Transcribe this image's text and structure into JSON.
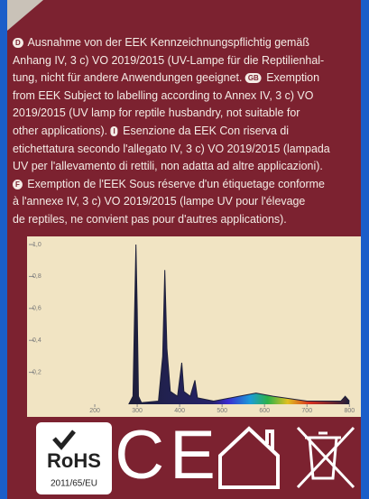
{
  "text": {
    "lines": [
      [
        {
          "icon": "D"
        },
        "Ausnahme von der EEK Kennzeichnungspflichtig gemäß"
      ],
      [
        "Anhang IV, 3 c) VO 2019/2015 (UV-Lampe für die Reptilienhal-"
      ],
      [
        "tung, nicht für andere Anwendungen geeignet.",
        {
          "icon": "GB"
        },
        "Exemption"
      ],
      [
        "from EEK Subject to labelling according to Annex IV, 3 c) VO"
      ],
      [
        "2019/2015 (UV lamp for reptile husbandry, not suitable for"
      ],
      [
        "other applications).",
        {
          "icon": "I"
        },
        "Esenzione da EEK Con riserva di"
      ],
      [
        "etichettatura secondo l'allegato IV, 3 c) VO 2019/2015 (lampada"
      ],
      [
        "UV per l'allevamento di rettili, non adatta ad altre applicazioni)."
      ],
      [
        {
          "icon": "F"
        },
        "Exemption de l'EEK Sous réserve d'un étiquetage conforme"
      ],
      [
        "à l'annexe IV, 3 c) VO 2019/2015 (lampe UV pour l'élevage"
      ],
      [
        "de reptiles, ne convient pas pour d'autres applications)."
      ]
    ]
  },
  "chart_data": {
    "type": "line",
    "x": [
      280,
      290,
      294,
      297,
      300,
      303,
      310,
      350,
      360,
      365,
      370,
      378,
      395,
      405,
      410,
      425,
      436,
      442,
      480,
      540,
      580,
      620,
      700,
      780,
      790,
      800
    ],
    "series": [
      {
        "color": "#1d1f3a",
        "values": [
          0,
          0.05,
          0.6,
          1.0,
          0.6,
          0.05,
          0.01,
          0.02,
          0.3,
          0.84,
          0.35,
          0.08,
          0.05,
          0.26,
          0.08,
          0.05,
          0.15,
          0.04,
          0.02,
          0.05,
          0.07,
          0.05,
          0.02,
          0.02,
          0.05,
          0.02
        ]
      }
    ],
    "xlim": [
      100,
      810
    ],
    "xticks": [
      200,
      300,
      400,
      500,
      600,
      700,
      800
    ],
    "ylim": [
      0,
      1.0
    ],
    "yticks": [
      {
        "value": 0.2,
        "label": "0,2"
      },
      {
        "value": 0.4,
        "label": "0,4"
      },
      {
        "value": 0.6,
        "label": "0,6"
      },
      {
        "value": 0.8,
        "label": "0,8"
      },
      {
        "value": 1.0,
        "label": "1,0"
      }
    ]
  },
  "badges": {
    "rohs": "RoHS",
    "rohs_directive": "2011/65/EU",
    "ce_mark": "CE"
  }
}
